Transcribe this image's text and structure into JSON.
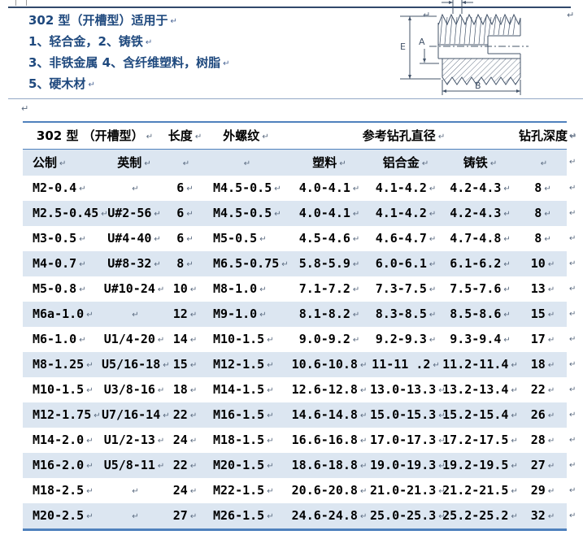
{
  "intro": {
    "title": "302 型（开槽型）适用于",
    "line1": "1、轻合金，2、铸铁",
    "line2": "3、非铁金属 4、含纤维塑料，树脂",
    "line3": "5、硬木材"
  },
  "diagram": {
    "labels": {
      "e": "E",
      "a": "A",
      "b": "B"
    }
  },
  "table": {
    "header": {
      "type_group": "302 型 （开槽型）",
      "length": "长度",
      "ext_thread": "外螺纹",
      "drill_dia": "参考钻孔直径",
      "drill_depth": "钻孔深度"
    },
    "subheader": {
      "metric": "公制",
      "imperial": "英制",
      "plastic": "塑料",
      "aluminum": "铝合金",
      "cast_iron": "铸铁"
    },
    "rows": [
      [
        "M2-0.4",
        "",
        "6",
        "M4.5-0.5",
        "4.0-4.1",
        "4.1-4.2",
        "4.2-4.3",
        "8"
      ],
      [
        "M2.5-0.45",
        "U#2-56",
        "6",
        "M4.5-0.5",
        "4.0-4.1",
        "4.1-4.2",
        "4.2-4.3",
        "8"
      ],
      [
        "M3-0.5",
        "U#4-40",
        "6",
        "M5-0.5",
        "4.5-4.6",
        "4.6-4.7",
        "4.7-4.8",
        "8"
      ],
      [
        "M4-0.7",
        "U#8-32",
        "8",
        "M6.5-0.75",
        "5.8-5.9",
        "6.0-6.1",
        "6.1-6.2",
        "10"
      ],
      [
        "M5-0.8",
        "U#10-24",
        "10",
        "M8-1.0",
        "7.1-7.2",
        "7.3-7.5",
        "7.5-7.6",
        "13"
      ],
      [
        "M6a-1.0",
        "",
        "12",
        "M9-1.0",
        "8.1-8.2",
        "8.3-8.5",
        "8.5-8.6",
        "15"
      ],
      [
        "M6-1.0",
        "U1/4-20",
        "14",
        "M10-1.5",
        "9.0-9.2",
        "9.2-9.3",
        "9.3-9.4",
        "17"
      ],
      [
        "M8-1.25",
        "U5/16-18",
        "15",
        "M12-1.5",
        "10.6-10.8",
        "11-11 .2",
        "11.2-11.4",
        "18"
      ],
      [
        "M10-1.5",
        "U3/8-16",
        "18",
        "M14-1.5",
        "12.6-12.8",
        "13.0-13.3",
        "13.2-13.4",
        "22"
      ],
      [
        "M12-1.75",
        "U7/16-14",
        "22",
        "M16-1.5",
        "14.6-14.8",
        "15.0-15.3",
        "15.2-15.4",
        "26"
      ],
      [
        "M14-2.0",
        "U1/2-13",
        "24",
        "M18-1.5",
        "16.6-16.8",
        "17.0-17.3",
        "17.2-17.5",
        "28"
      ],
      [
        "M16-2.0",
        "U5/8-11",
        "22",
        "M20-1.5",
        "18.6-18.8",
        "19.0-19.3",
        "19.2-19.5",
        "27"
      ],
      [
        "M18-2.5",
        "",
        "24",
        "M22-1.5",
        "20.6-20.8",
        "21.0-21.3",
        "21.2-21.5",
        "29"
      ],
      [
        "M20-2.5",
        "",
        "27",
        "M26-1.5",
        "24.6-24.8",
        "25.0-25.3",
        "25.2-25.2",
        "32"
      ]
    ]
  },
  "marks": {
    "pilcrow": "↵"
  },
  "colors": {
    "intro_text": "#1F497E",
    "table_border": "#4F81BD",
    "stripe": "#DCE6F1",
    "rule_dark": "#31496b",
    "rule_light": "#93a9c6"
  }
}
